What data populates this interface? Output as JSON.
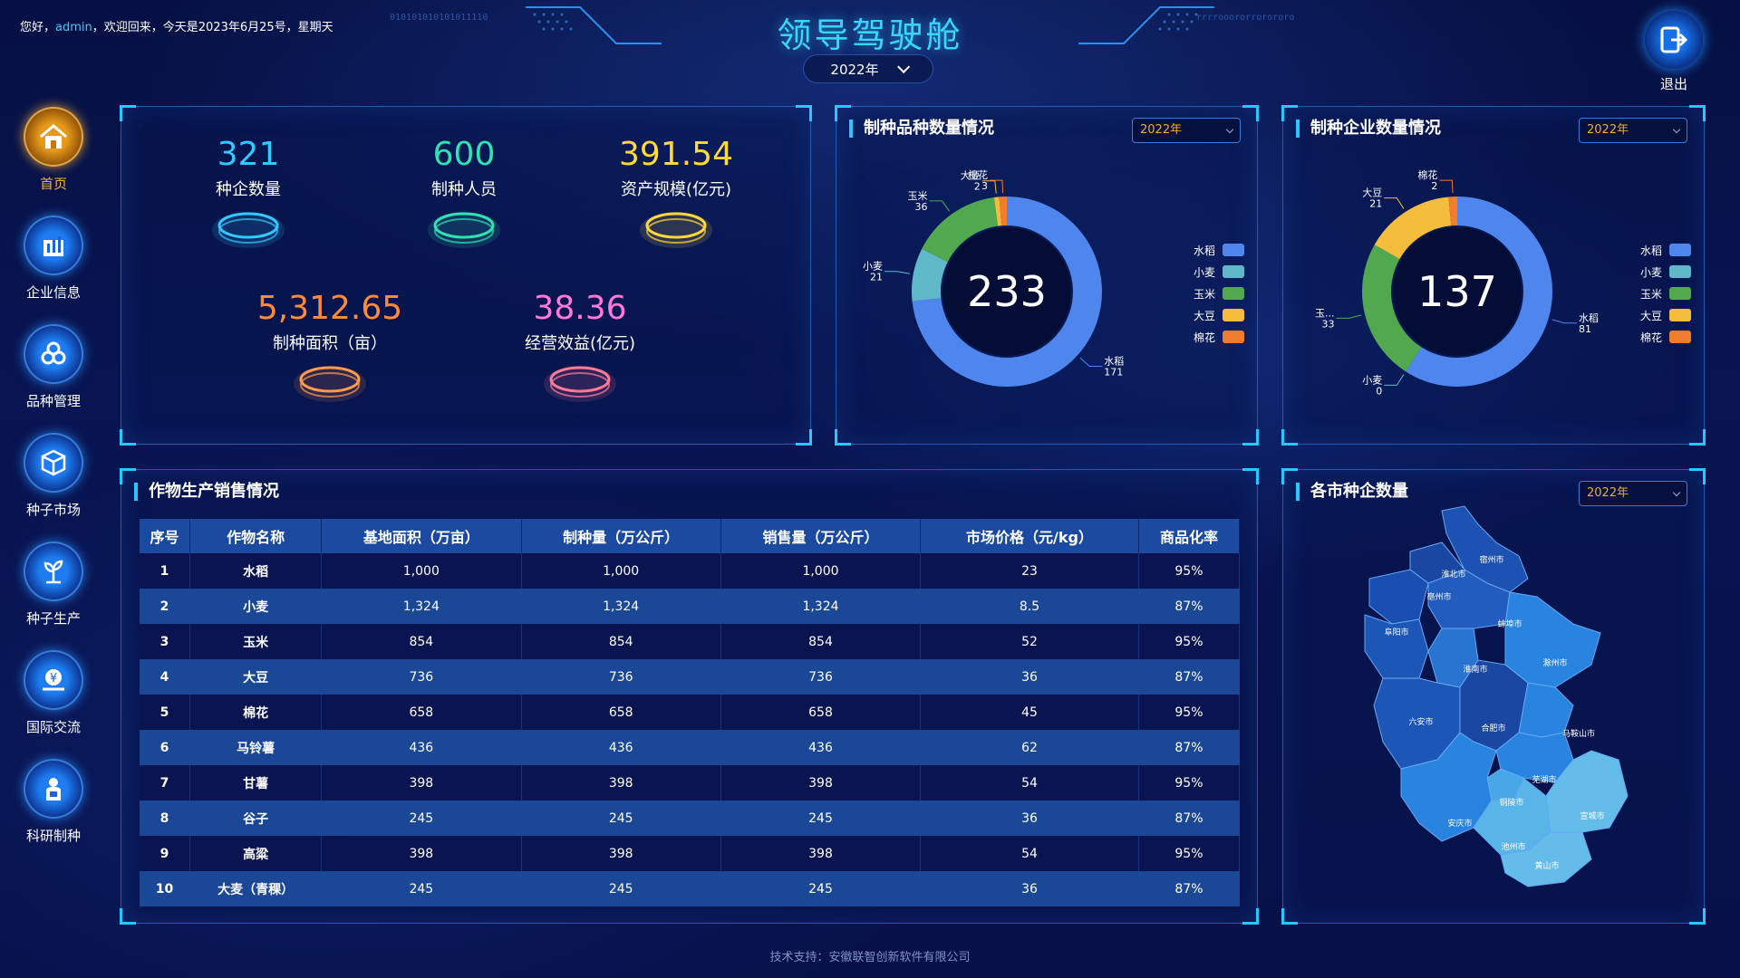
{
  "header": {
    "greeting_prefix": "您好，",
    "user": "admin",
    "greeting_suffix": "，欢迎回来，今天是2023年6月25号，星期天",
    "title": "领导驾驶舱",
    "year": "2022年",
    "logout_label": "退出",
    "deco_left": "010101010101011110",
    "deco_right": "rrrrooororrorororo"
  },
  "sidebar": {
    "items": [
      {
        "label": "首页",
        "icon": "home-icon",
        "active": true
      },
      {
        "label": "企业信息",
        "icon": "building-icon",
        "active": false
      },
      {
        "label": "品种管理",
        "icon": "variety-icon",
        "active": false
      },
      {
        "label": "种子市场",
        "icon": "cube-icon",
        "active": false
      },
      {
        "label": "种子生产",
        "icon": "sprout-icon",
        "active": false
      },
      {
        "label": "国际交流",
        "icon": "exchange-icon",
        "active": false
      },
      {
        "label": "科研制种",
        "icon": "research-icon",
        "active": false
      }
    ]
  },
  "stats": [
    {
      "value": "321",
      "label": "种企数量",
      "color": "#33c8ff"
    },
    {
      "value": "600",
      "label": "制种人员",
      "color": "#2fe3b4"
    },
    {
      "value": "391.54",
      "label": "资产规模(亿元)",
      "color": "#ffd83a"
    },
    {
      "value": "5,312.65",
      "label": "制种面积（亩）",
      "color": "#ff8a3c"
    },
    {
      "value": "38.36",
      "label": "经营效益(亿元)",
      "color": "#ff7ad8"
    }
  ],
  "variety_panel": {
    "title": "制种品种数量情况",
    "year": "2022年",
    "total": "233"
  },
  "enterprise_panel": {
    "title": "制种企业数量情况",
    "year": "2022年",
    "total": "137"
  },
  "table_panel": {
    "title": "作物生产销售情况",
    "headers": [
      "序号",
      "作物名称",
      "基地面积（万亩）",
      "制种量（万公斤）",
      "销售量（万公斤）",
      "市场价格（元/kg）",
      "商品化率"
    ],
    "rows": [
      [
        "1",
        "水稻",
        "1,000",
        "1,000",
        "1,000",
        "23",
        "95%"
      ],
      [
        "2",
        "小麦",
        "1,324",
        "1,324",
        "1,324",
        "8.5",
        "87%"
      ],
      [
        "3",
        "玉米",
        "854",
        "854",
        "854",
        "52",
        "95%"
      ],
      [
        "4",
        "大豆",
        "736",
        "736",
        "736",
        "36",
        "87%"
      ],
      [
        "5",
        "棉花",
        "658",
        "658",
        "658",
        "45",
        "95%"
      ],
      [
        "6",
        "马铃薯",
        "436",
        "436",
        "436",
        "62",
        "87%"
      ],
      [
        "7",
        "甘薯",
        "398",
        "398",
        "398",
        "54",
        "95%"
      ],
      [
        "8",
        "谷子",
        "245",
        "245",
        "245",
        "36",
        "87%"
      ],
      [
        "9",
        "高粱",
        "398",
        "398",
        "398",
        "54",
        "95%"
      ],
      [
        "10",
        "大麦（青稞）",
        "245",
        "245",
        "245",
        "36",
        "87%"
      ]
    ]
  },
  "map_panel": {
    "title": "各市种企数量",
    "year": "2022年",
    "cities": [
      "宿州市",
      "淮北市",
      "亳州市",
      "阜阳市",
      "蚌埠市",
      "淮南市",
      "滁州市",
      "六安市",
      "合肥市",
      "马鞍山市",
      "芜湖市",
      "铜陵市",
      "安庆市",
      "池州市",
      "宣城市",
      "黄山市"
    ]
  },
  "footer": "技术支持：安徽联智创新软件有限公司",
  "chart_data": [
    {
      "type": "pie",
      "title": "制种品种数量情况",
      "categories": [
        "水稻",
        "小麦",
        "玉米",
        "大豆",
        "棉花"
      ],
      "values": [
        171,
        21,
        36,
        2,
        3
      ],
      "colors": [
        "#4f86ee",
        "#5fb8c8",
        "#52a84e",
        "#f4be3c",
        "#f07c2c"
      ],
      "legend": "right"
    },
    {
      "type": "pie",
      "title": "制种企业数量情况",
      "categories": [
        "水稻",
        "小麦",
        "玉米",
        "大豆",
        "棉花"
      ],
      "values": [
        81,
        0,
        33,
        21,
        2
      ],
      "display_labels": [
        "水稻",
        "小麦",
        "玉...",
        "大豆",
        "棉花"
      ],
      "colors": [
        "#4f86ee",
        "#5fb8c8",
        "#52a84e",
        "#f4be3c",
        "#f07c2c"
      ],
      "legend": "right"
    }
  ]
}
